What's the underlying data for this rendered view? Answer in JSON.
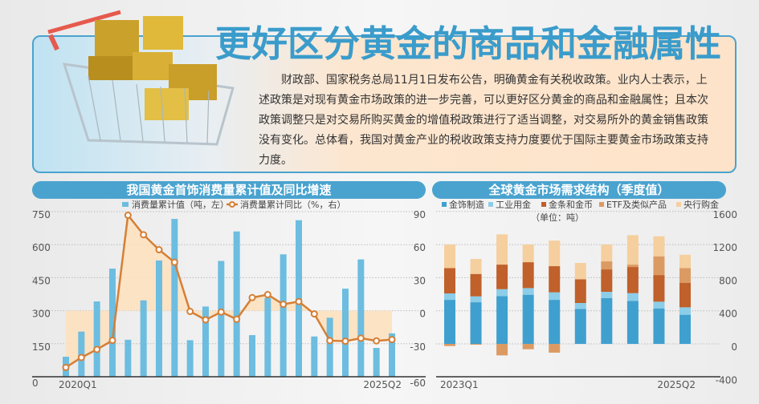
{
  "header": {
    "title": "更好区分黄金的商品和金融属性",
    "body": "财政部、国家税务总局11月1日发布公告，明确黄金有关税收政策。业内人士表示，上述政策是对现有黄金市场政策的进一步完善，可以更好区分黄金的商品和金融属性；且本次政策调整只是对交易所购买黄金的增值税政策进行了适当调整，对交易所外的黄金销售政策没有变化。总体看，我国对黄金产业的税收政策支持力度要优于国际主要黄金市场政策支持力度。"
  },
  "colors": {
    "accent": "#4aa3cf",
    "left_bar": "#6cbde0",
    "left_line": "#d57f36",
    "left_fill": "#fde1bf"
  },
  "chart_data": [
    {
      "type": "bar+line",
      "title": "我国黄金首饰消费量累计值及同比增速",
      "x_first_label": "2020Q1",
      "x_last_label": "2025Q2",
      "left_axis": {
        "ticks": [
          0,
          150,
          300,
          450,
          600,
          750
        ],
        "range": [
          0,
          750
        ]
      },
      "right_axis": {
        "ticks": [
          -60,
          -30,
          0,
          30,
          60,
          90
        ],
        "range": [
          -60,
          90
        ]
      },
      "grid": true,
      "legend": "top",
      "series": [
        {
          "name": "消费量累计值（吨，左）",
          "kind": "bar",
          "axis": "left",
          "values": [
            91,
            205,
            342,
            491,
            168,
            347,
            528,
            717,
            166,
            319,
            526,
            660,
            189,
            358,
            556,
            711,
            183,
            268,
            400,
            533,
            131,
            197
          ]
        },
        {
          "name": "消费量累计同比（%，右）",
          "kind": "line",
          "axis": "right",
          "values": [
            -51.5,
            -42.5,
            -35.2,
            -27,
            86.7,
            69,
            55.4,
            44,
            -0.7,
            -8.3,
            -1.2,
            -7.8,
            11.9,
            14.6,
            5.8,
            8.3,
            -2.9,
            -27.2,
            -27.7,
            -25,
            -27.4,
            -26.2
          ]
        }
      ]
    },
    {
      "type": "stacked-bar",
      "title": "全球黄金市场需求结构（季度值）",
      "unit": "（单位：吨）",
      "x_first_label": "2023Q1",
      "x_last_label": "2025Q2",
      "y_axis": {
        "ticks": [
          -400,
          0,
          400,
          800,
          1200,
          1600
        ],
        "range": [
          -400,
          1600
        ]
      },
      "grid": true,
      "legend": "top",
      "series": [
        {
          "name": "金饰制造",
          "color": "#3fa0cf",
          "values": [
            532,
            503,
            577,
            594,
            532,
            423,
            552,
            519,
            429,
            352
          ]
        },
        {
          "name": "工业用金",
          "color": "#8ccde8",
          "values": [
            78,
            71,
            84,
            80,
            91,
            71,
            77,
            94,
            81,
            90
          ]
        },
        {
          "name": "金条和金币",
          "color": "#c0602a",
          "values": [
            306,
            271,
            297,
            313,
            316,
            287,
            271,
            316,
            322,
            297
          ]
        },
        {
          "name": "ETF及类似产品",
          "color": "#dc9a63",
          "values": [
            -26,
            -10,
            -139,
            -65,
            -106,
            0,
            97,
            29,
            226,
            177
          ]
        },
        {
          "name": "央行购金",
          "color": "#f5cf9e",
          "values": [
            284,
            181,
            365,
            213,
            309,
            197,
            203,
            355,
            242,
            161
          ]
        }
      ]
    }
  ]
}
